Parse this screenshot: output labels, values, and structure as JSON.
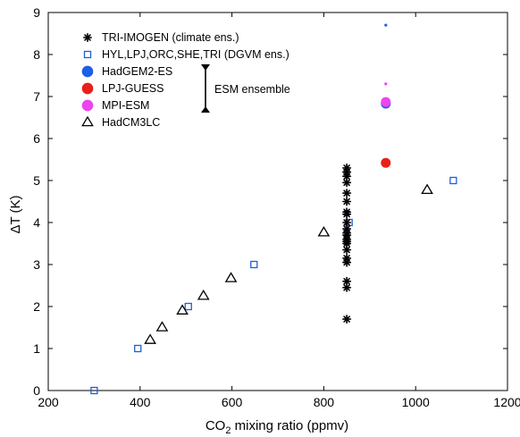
{
  "chart_data": {
    "type": "scatter",
    "xlabel": "CO",
    "xlabel_sub": "2",
    "xlabel_rest": " mixing ratio (ppmv)",
    "ylabel": "ΔT (K)",
    "xlim": [
      200,
      1200
    ],
    "ylim": [
      0,
      9
    ],
    "xticks": [
      200,
      400,
      600,
      800,
      1000,
      1200
    ],
    "yticks": [
      0,
      1,
      2,
      3,
      4,
      5,
      6,
      7,
      8,
      9
    ],
    "grid": false,
    "legend_placement": "top-left",
    "bracket_label": "ESM ensemble",
    "series": [
      {
        "name": "TRI-IMOGEN (climate ens.)",
        "marker": "asterisk",
        "color": "#000000",
        "points": [
          [
            850,
            1.7
          ],
          [
            850,
            2.45
          ],
          [
            850,
            2.6
          ],
          [
            850,
            3.05
          ],
          [
            850,
            3.15
          ],
          [
            850,
            3.35
          ],
          [
            850,
            3.5
          ],
          [
            850,
            3.55
          ],
          [
            850,
            3.6
          ],
          [
            850,
            3.7
          ],
          [
            850,
            3.75
          ],
          [
            850,
            3.85
          ],
          [
            850,
            4.0
          ],
          [
            850,
            4.2
          ],
          [
            850,
            4.25
          ],
          [
            850,
            4.5
          ],
          [
            850,
            4.7
          ],
          [
            850,
            4.95
          ],
          [
            850,
            5.1
          ],
          [
            850,
            5.2
          ],
          [
            850,
            5.3
          ]
        ]
      },
      {
        "name": "HYL,LPJ,ORC,SHE,TRI (DGVM ens.)",
        "marker": "square",
        "color": "#1f5fd6",
        "points": [
          [
            300,
            0
          ],
          [
            395,
            1
          ],
          [
            505,
            2
          ],
          [
            648,
            3
          ],
          [
            855,
            4
          ],
          [
            1082,
            5
          ]
        ]
      },
      {
        "name": "HadGEM2-ES",
        "marker": "circle",
        "color": "#1f5fe8",
        "points": [
          [
            935,
            6.83
          ]
        ]
      },
      {
        "name": "LPJ-GUESS",
        "marker": "circle",
        "color": "#e8201a",
        "points": [
          [
            935,
            5.42
          ]
        ]
      },
      {
        "name": "MPI-ESM",
        "marker": "circle",
        "color": "#ee44ee",
        "points": [
          [
            935,
            6.87
          ]
        ]
      },
      {
        "name": "HadCM3LC",
        "marker": "triangle",
        "color": "#000000",
        "points": [
          [
            422,
            1.2
          ],
          [
            448,
            1.5
          ],
          [
            492,
            1.9
          ],
          [
            538,
            2.25
          ],
          [
            598,
            2.67
          ],
          [
            800,
            3.76
          ],
          [
            1025,
            4.77
          ]
        ]
      }
    ],
    "extra_points": [
      {
        "x": 935,
        "y": 8.7,
        "color": "#1f5fe8"
      },
      {
        "x": 935,
        "y": 7.3,
        "color": "#ee44ee"
      }
    ]
  }
}
